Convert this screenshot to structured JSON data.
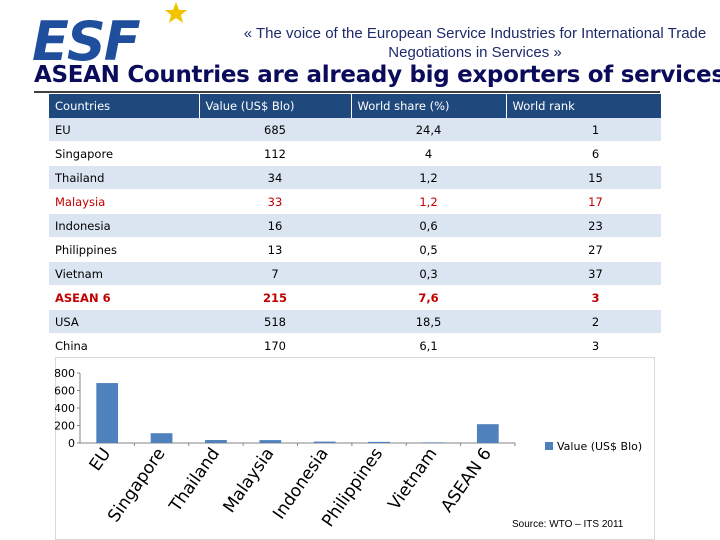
{
  "header": {
    "logo_text": "ESF",
    "tagline": "«  The voice of the European Service Industries for International Trade Negotiations in Services  »"
  },
  "title": "ASEAN Countries are already big exporters of services",
  "table": {
    "headers": [
      "Countries",
      "Value (US$ Blo)",
      "World share (%)",
      "World rank"
    ],
    "rows": [
      {
        "country": "EU",
        "value": "685",
        "share": "24,4",
        "rank": "1",
        "highlight": "none"
      },
      {
        "country": "Singapore",
        "value": "112",
        "share": "4",
        "rank": "6",
        "highlight": "none"
      },
      {
        "country": "Thailand",
        "value": "34",
        "share": "1,2",
        "rank": "15",
        "highlight": "none"
      },
      {
        "country": "Malaysia",
        "value": "33",
        "share": "1,2",
        "rank": "17",
        "highlight": "red"
      },
      {
        "country": "Indonesia",
        "value": "16",
        "share": "0,6",
        "rank": "23",
        "highlight": "none"
      },
      {
        "country": "Philippines",
        "value": "13",
        "share": "0,5",
        "rank": "27",
        "highlight": "none"
      },
      {
        "country": "Vietnam",
        "value": "7",
        "share": "0,3",
        "rank": "37",
        "highlight": "none"
      },
      {
        "country": "ASEAN 6",
        "value": "215",
        "share": "7,6",
        "rank": "3",
        "highlight": "red-bold"
      },
      {
        "country": "USA",
        "value": "518",
        "share": "18,5",
        "rank": "2",
        "highlight": "none"
      },
      {
        "country": "China",
        "value": "170",
        "share": "6,1",
        "rank": "3",
        "highlight": "none"
      }
    ]
  },
  "chart_data": {
    "type": "bar",
    "title": "",
    "categories": [
      "EU",
      "Singapore",
      "Thailand",
      "Malaysia",
      "Indonesia",
      "Philippines",
      "Vietnam",
      "ASEAN 6"
    ],
    "series": [
      {
        "name": "Value (US$ Blo)",
        "values": [
          685,
          112,
          34,
          33,
          16,
          13,
          7,
          215
        ]
      }
    ],
    "xlabel": "",
    "ylabel": "",
    "ylim": [
      0,
      800
    ],
    "yticks": [
      0,
      200,
      400,
      600,
      800
    ],
    "grid": false,
    "legend": "right",
    "bar_color": "#4f81bd"
  },
  "source": "Source: WTO – ITS 2011",
  "colors": {
    "header_bg": "#1f497d",
    "band": "#dbe5f1",
    "red": "#c00000",
    "title": "#0b0b5c",
    "logo_blue": "#1f4e9c",
    "star": "#f2c300"
  }
}
